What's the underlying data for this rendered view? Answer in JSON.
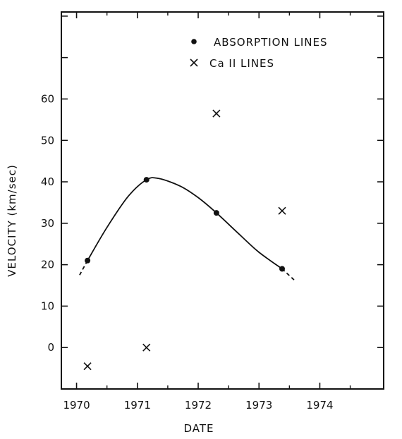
{
  "chart_data": {
    "type": "scatter",
    "title": "",
    "xlabel": "DATE",
    "ylabel": "VELOCITY (km/sec)",
    "xlim": [
      1969.75,
      1975.05
    ],
    "ylim": [
      -10,
      81
    ],
    "x_ticks": [
      1970,
      1971,
      1972,
      1973,
      1974
    ],
    "x_tick_labels": [
      "1970",
      "1971",
      "1972",
      "1973",
      "1974"
    ],
    "y_ticks": [
      0,
      10,
      20,
      30,
      40,
      50,
      60
    ],
    "y_tick_labels": [
      "0",
      "10",
      "20",
      "30",
      "40",
      "50",
      "60"
    ],
    "grid": false,
    "legend_position": "top-right",
    "series": [
      {
        "name": "ABSORPTION LINES",
        "marker": "dot",
        "x": [
          1970.18,
          1971.15,
          1972.3,
          1973.38
        ],
        "y": [
          21,
          40.5,
          32.5,
          19
        ]
      },
      {
        "name": "Ca II LINES",
        "marker": "x",
        "x": [
          1970.18,
          1971.15,
          1972.3,
          1973.38
        ],
        "y": [
          -4.5,
          0,
          56.5,
          33
        ]
      }
    ],
    "fit_curve": {
      "x": [
        1970.05,
        1970.18,
        1970.5,
        1970.85,
        1971.15,
        1971.35,
        1971.7,
        1972.0,
        1972.3,
        1972.7,
        1973.0,
        1973.38,
        1973.6
      ],
      "y": [
        17.5,
        21,
        29,
        36.5,
        40.5,
        40.8,
        39,
        36.2,
        32.5,
        27,
        23,
        19,
        16
      ]
    }
  },
  "colors": {
    "ink": "#111111",
    "background": "#ffffff"
  }
}
